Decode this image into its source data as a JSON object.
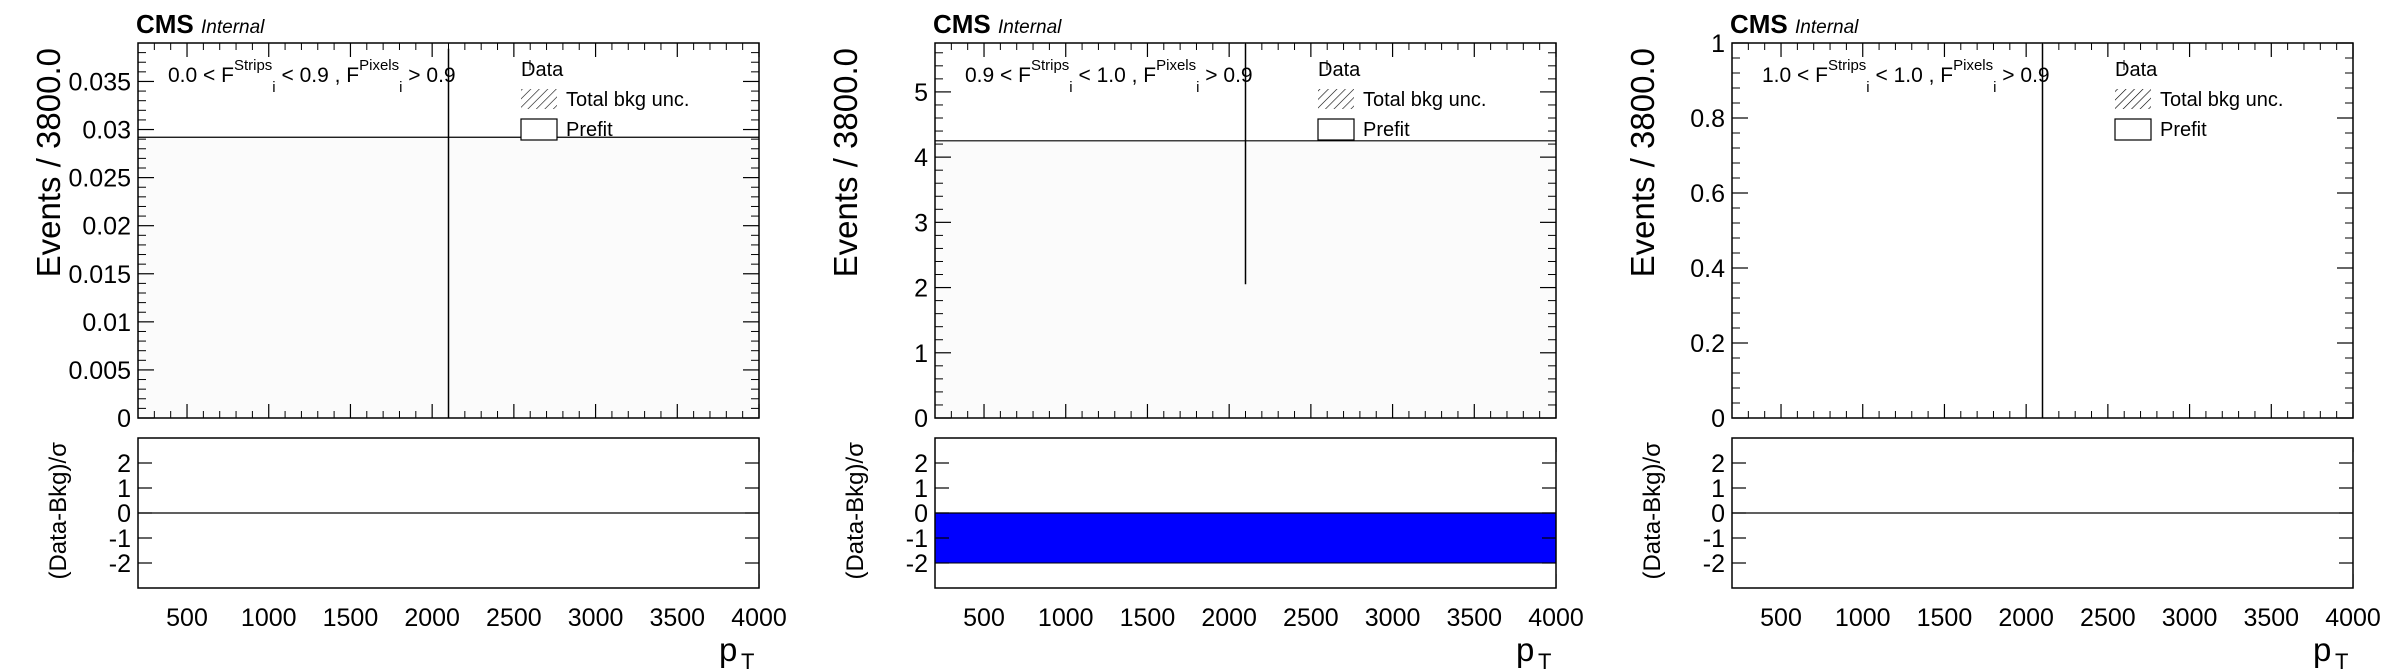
{
  "figure": {
    "experiment": "CMS",
    "status": "Internal",
    "xlabel": "p",
    "xlabel_sub": "T",
    "ylabel": "Events / 3800.0",
    "ratio_ylabel": "(Data-Bkg)/σ",
    "legend": {
      "data_label": "Data",
      "unc_label": "Total bkg unc.",
      "prefit_label": "Prefit"
    }
  },
  "chart_data": [
    {
      "type": "bar",
      "category_parts": [
        "0.0 < F",
        "Strips",
        "i",
        " < 0.9 , F",
        "Pixels",
        "i",
        " > 0.9"
      ],
      "xlim": [
        200,
        4000
      ],
      "x_ticks": [
        500,
        1000,
        1500,
        2000,
        2500,
        3000,
        3500,
        4000
      ],
      "y_ticks": [
        "0",
        "0.005",
        "0.01",
        "0.015",
        "0.02",
        "0.025",
        "0.03",
        "0.035"
      ],
      "ylim": [
        0,
        0.039
      ],
      "bins": [
        200,
        4000
      ],
      "prefit_values": [
        0.0292
      ],
      "data": {
        "x": 2100,
        "y": 0.0292,
        "err_low": 0.0292,
        "err_high": 0.0092
      },
      "ratio": {
        "ylim": [
          -3,
          3
        ],
        "y_ticks": [
          "-2",
          "-1",
          "0",
          "1",
          "2"
        ],
        "band": null
      }
    },
    {
      "type": "bar",
      "category_parts": [
        "0.9 < F",
        "Strips",
        "i",
        " < 1.0 , F",
        "Pixels",
        "i",
        " > 0.9"
      ],
      "xlim": [
        200,
        4000
      ],
      "x_ticks": [
        500,
        1000,
        1500,
        2000,
        2500,
        3000,
        3500,
        4000
      ],
      "y_ticks": [
        "0",
        "1",
        "2",
        "3",
        "4",
        "5"
      ],
      "ylim": [
        0,
        5.75
      ],
      "bins": [
        200,
        4000
      ],
      "prefit_values": [
        4.25
      ],
      "data": {
        "x": 2100,
        "y": 4.25,
        "err_low": 2.2,
        "err_high": 1.5
      },
      "ratio": {
        "ylim": [
          -3,
          3
        ],
        "y_ticks": [
          "-2",
          "-1",
          "0",
          "1",
          "2"
        ],
        "band": [
          -2,
          0
        ],
        "band_color": "#0000ff"
      }
    },
    {
      "type": "bar",
      "category_parts": [
        "1.0 < F",
        "Strips",
        "i",
        " < 1.0 , F",
        "Pixels",
        "i",
        " > 0.9"
      ],
      "xlim": [
        200,
        4000
      ],
      "x_ticks": [
        500,
        1000,
        1500,
        2000,
        2500,
        3000,
        3500,
        4000
      ],
      "y_ticks": [
        "0",
        "0.2",
        "0.4",
        "0.6",
        "0.8",
        "1"
      ],
      "ylim": [
        0,
        1
      ],
      "bins": [
        200,
        4000
      ],
      "prefit_values": [
        0
      ],
      "data": {
        "x": 2100,
        "y": 0,
        "err_low": 0,
        "err_high": 1.0
      },
      "ratio": {
        "ylim": [
          -3,
          3
        ],
        "y_ticks": [
          "-2",
          "-1",
          "0",
          "1",
          "2"
        ],
        "band": null
      }
    }
  ]
}
